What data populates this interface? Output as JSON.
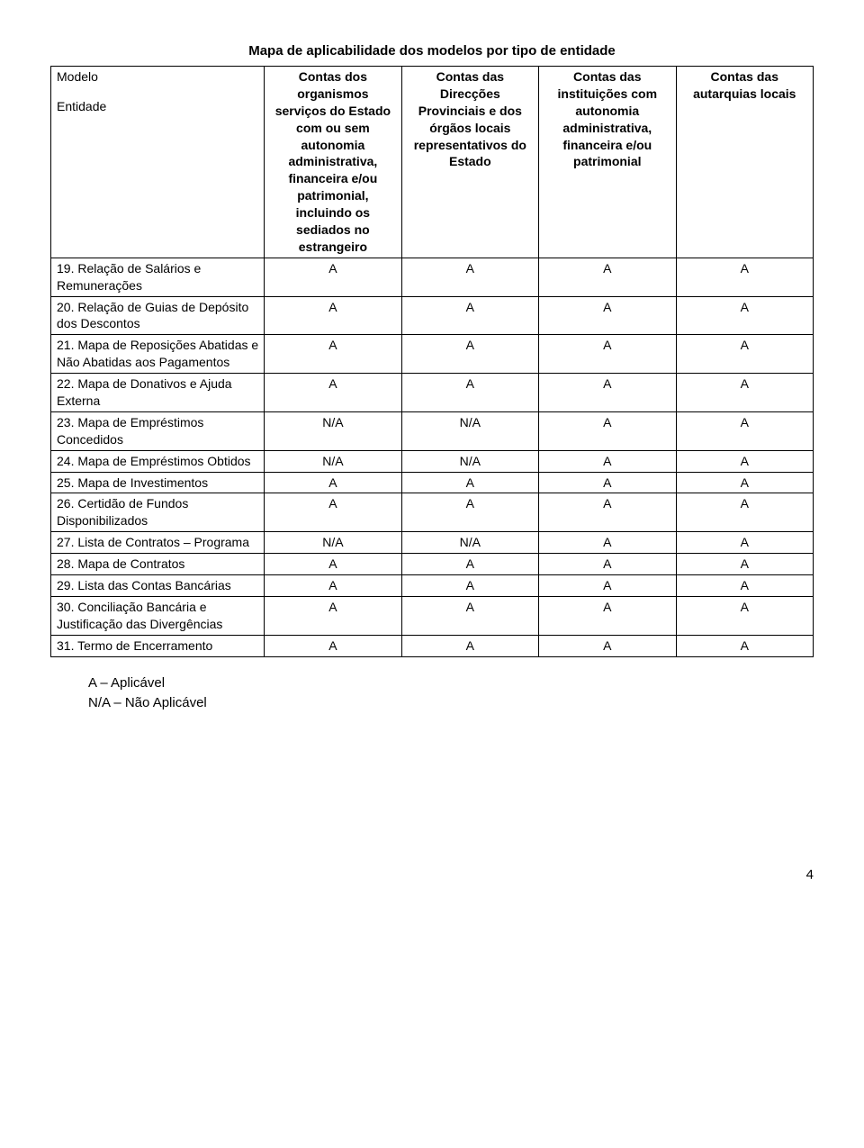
{
  "title": "Mapa de aplicabilidade dos modelos por tipo de entidade",
  "header": {
    "model_label": "Modelo",
    "entity_label": "Entidade",
    "cols": [
      "Contas dos organismos serviços do Estado com ou sem autonomia administrativa, financeira e/ou patrimonial, incluindo os sediados no estrangeiro",
      "Contas das Direcções Provinciais e dos órgãos locais representativos do Estado",
      "Contas das instituições com autonomia administrativa, financeira e/ou patrimonial",
      "Contas das autarquias locais"
    ]
  },
  "rows": [
    {
      "label": "19. Relação de Salários e Remunerações",
      "v": [
        "A",
        "A",
        "A",
        "A"
      ]
    },
    {
      "label": "20. Relação de Guias de Depósito dos Descontos",
      "v": [
        "A",
        "A",
        "A",
        "A"
      ]
    },
    {
      "label": "21. Mapa de Reposições Abatidas e Não Abatidas aos Pagamentos",
      "v": [
        "A",
        "A",
        "A",
        "A"
      ]
    },
    {
      "label": "22. Mapa de Donativos e Ajuda Externa",
      "v": [
        "A",
        "A",
        "A",
        "A"
      ]
    },
    {
      "label": "23. Mapa de Empréstimos Concedidos",
      "v": [
        "N/A",
        "N/A",
        "A",
        "A"
      ]
    },
    {
      "label": "24. Mapa de Empréstimos Obtidos",
      "v": [
        "N/A",
        "N/A",
        "A",
        "A"
      ]
    },
    {
      "label": "25. Mapa de Investimentos",
      "v": [
        "A",
        "A",
        "A",
        "A"
      ]
    },
    {
      "label": "26. Certidão de Fundos Disponibilizados",
      "v": [
        "A",
        "A",
        "A",
        "A"
      ]
    },
    {
      "label": "27. Lista de Contratos – Programa",
      "v": [
        "N/A",
        "N/A",
        "A",
        "A"
      ]
    },
    {
      "label": "28. Mapa de Contratos",
      "v": [
        "A",
        "A",
        "A",
        "A"
      ]
    },
    {
      "label": "29. Lista das Contas Bancárias",
      "v": [
        "A",
        "A",
        "A",
        "A"
      ]
    },
    {
      "label": "30. Conciliação Bancária e Justificação das Divergências",
      "v": [
        "A",
        "A",
        "A",
        "A"
      ]
    },
    {
      "label": "31. Termo de Encerramento",
      "v": [
        "A",
        "A",
        "A",
        "A"
      ]
    }
  ],
  "legend": {
    "a": "A – Aplicável",
    "na": "N/A – Não Aplicável"
  },
  "page_number": "4",
  "style": {
    "title_fontsize": 15,
    "cell_fontsize": 14,
    "border_color": "#000000",
    "background_color": "#ffffff",
    "text_color": "#000000"
  }
}
